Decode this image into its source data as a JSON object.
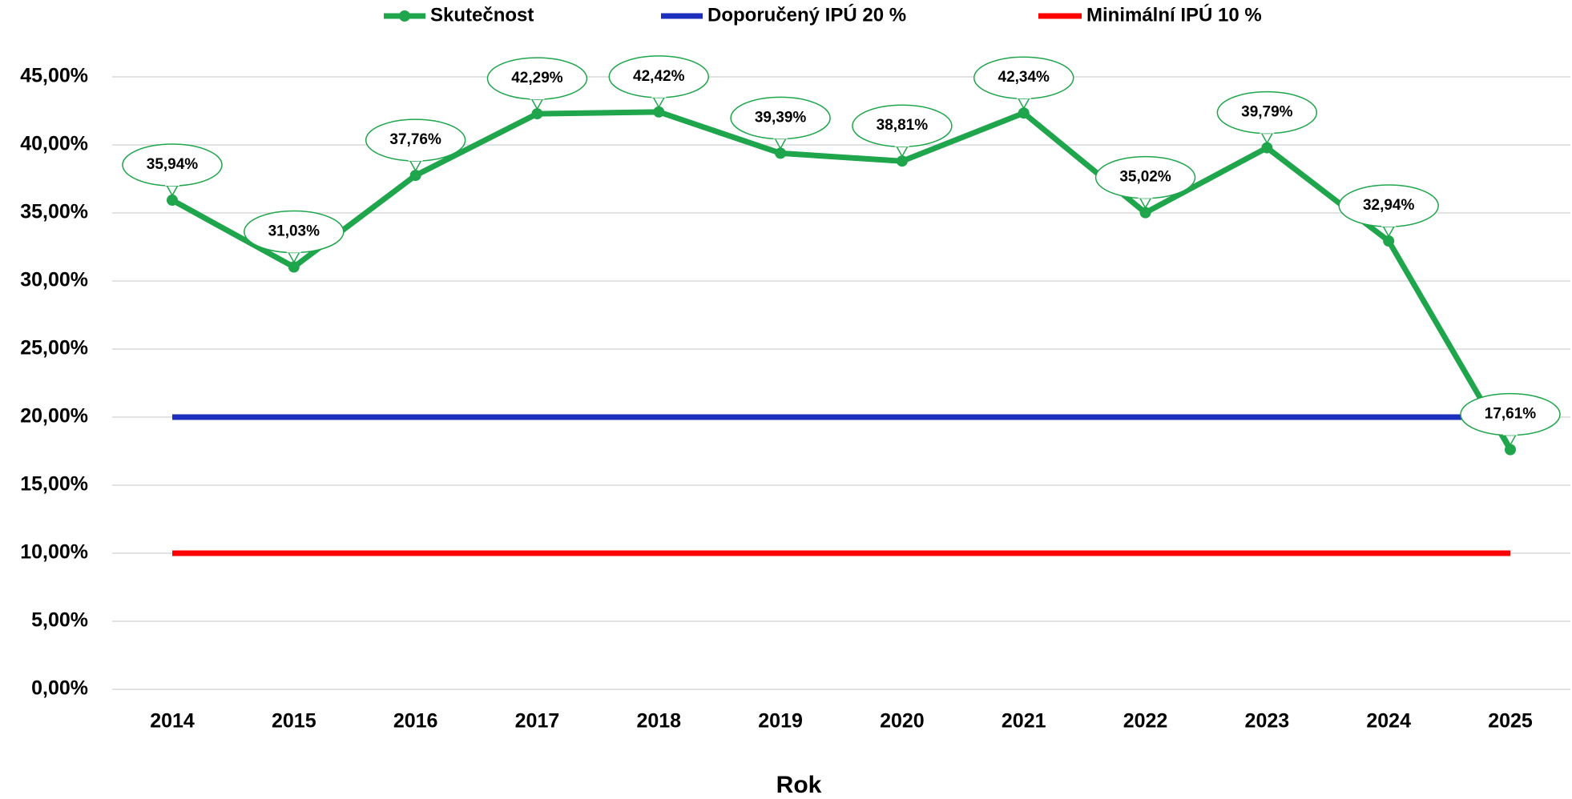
{
  "chart_data": {
    "type": "line",
    "x_label": "Rok",
    "categories": [
      "2014",
      "2015",
      "2016",
      "2017",
      "2018",
      "2019",
      "2020",
      "2021",
      "2022",
      "2023",
      "2024",
      "2025"
    ],
    "series": [
      {
        "name": "Skutečnost",
        "color": "#1fa54b",
        "marker": true,
        "values": [
          35.94,
          31.03,
          37.76,
          42.29,
          42.42,
          39.39,
          38.81,
          42.34,
          35.02,
          39.79,
          32.94,
          17.61
        ],
        "value_labels": [
          "35,94%",
          "31,03%",
          "37,76%",
          "42,29%",
          "42,42%",
          "39,39%",
          "38,81%",
          "42,34%",
          "35,02%",
          "39,79%",
          "32,94%",
          "17,61%"
        ]
      },
      {
        "name": "Doporučený IPÚ 20 %",
        "color": "#1c2fbd",
        "marker": false,
        "values": [
          20,
          20,
          20,
          20,
          20,
          20,
          20,
          20,
          20,
          20,
          20,
          20
        ]
      },
      {
        "name": "Minimální IPÚ 10 %",
        "color": "#ff0000",
        "marker": false,
        "values": [
          10,
          10,
          10,
          10,
          10,
          10,
          10,
          10,
          10,
          10,
          10,
          10
        ]
      }
    ],
    "ylim": [
      0,
      45
    ],
    "yticks": [
      {
        "value": 0,
        "label": "0,00%"
      },
      {
        "value": 5,
        "label": "5,00%"
      },
      {
        "value": 10,
        "label": "10,00%"
      },
      {
        "value": 15,
        "label": "15,00%"
      },
      {
        "value": 20,
        "label": "20,00%"
      },
      {
        "value": 25,
        "label": "25,00%"
      },
      {
        "value": 30,
        "label": "30,00%"
      },
      {
        "value": 35,
        "label": "35,00%"
      },
      {
        "value": 40,
        "label": "40,00%"
      },
      {
        "value": 45,
        "label": "45,00%"
      }
    ],
    "grid": true,
    "legend": "top"
  }
}
